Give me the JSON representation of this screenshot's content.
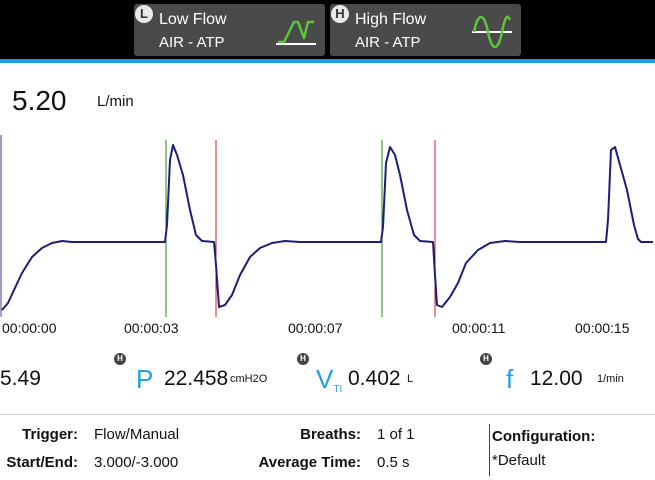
{
  "modes": [
    {
      "badge": "L",
      "title": "Low Flow",
      "subtitle": "AIR - ATP",
      "icon": "low-flow-wave-icon"
    },
    {
      "badge": "H",
      "title": "High Flow",
      "subtitle": "AIR - ATP",
      "icon": "high-flow-wave-icon"
    }
  ],
  "readout": {
    "value": "5.20",
    "unit": "L/min"
  },
  "waveform": {
    "time_labels": [
      "00:00:00",
      "00:00:03",
      "00:00:07",
      "00:00:11",
      "00:00:15"
    ]
  },
  "metrics": {
    "partial_value": "5.49",
    "pressure": {
      "symbol": "P",
      "value": "22.458",
      "unit": "cmH2O"
    },
    "volume": {
      "symbol": "V",
      "subscript": "TI",
      "value": "0.402",
      "unit": "L"
    },
    "frequency": {
      "symbol": "f",
      "value": "12.00",
      "unit": "1/min"
    }
  },
  "info": {
    "trigger_label": "Trigger:",
    "trigger_value": "Flow/Manual",
    "start_end_label": "Start/End:",
    "start_end_value": "3.000/-3.000",
    "breaths_label": "Breaths:",
    "breaths_value": "1 of 1",
    "avg_time_label": "Average Time:",
    "avg_time_value": "0.5 s",
    "config_label": "Configuration:",
    "config_value": "*Default"
  },
  "colors": {
    "accent": "#1ea0e6",
    "waveform": "#1c1f7a",
    "inspiration_marker": "#1a8a1a",
    "expiration_marker": "#cc1f1f",
    "mode_icon": "#5ec43a"
  }
}
